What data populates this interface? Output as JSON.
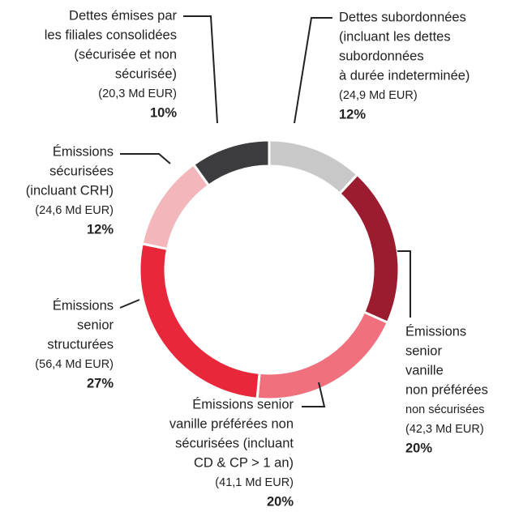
{
  "chart_data": {
    "type": "donut",
    "categories": [
      [
        "Dettes subordonnées",
        "(incluant les dettes",
        "subordonnées",
        "à durée indeterminée)"
      ],
      [
        "Émissions",
        "senior",
        "vanille",
        "non préférées",
        "non sécurisées"
      ],
      [
        "Émissions senior",
        "vanille préférées non",
        "sécurisées (incluant",
        "CD & CP > 1 an)"
      ],
      [
        "Émissions",
        "senior",
        "structurées"
      ],
      [
        "Émissions",
        "sécurisées",
        "(incluant CRH)"
      ],
      [
        "Dettes émises par",
        "les filiales consolidées",
        "(sécurisée et non",
        "sécurisée)"
      ]
    ],
    "amounts": [
      24.9,
      42.3,
      41.1,
      56.4,
      24.6,
      20.3
    ],
    "amount_labels": [
      "(24,9 Md EUR)",
      "(42,3 Md EUR)",
      "(41,1 Md EUR)",
      "(56,4 Md EUR)",
      "(24,6 Md EUR)",
      "(20,3 Md EUR)"
    ],
    "values": [
      12,
      20,
      20,
      27,
      12,
      10
    ],
    "value_labels": [
      "12%",
      "20%",
      "20%",
      "27%",
      "12%",
      "10%"
    ],
    "colors": [
      "#c8c8c9",
      "#9b1c2e",
      "#f0707e",
      "#e8283a",
      "#f3b7bb",
      "#3c3c3f"
    ]
  }
}
